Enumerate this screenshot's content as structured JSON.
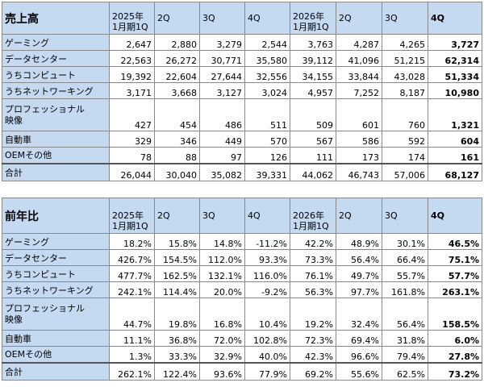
{
  "table1": {
    "title": "売上高",
    "headers": [
      {
        "line1": "2025年",
        "line2": "1月期1Q"
      },
      {
        "line1": "2Q",
        "line2": ""
      },
      {
        "line1": "3Q",
        "line2": ""
      },
      {
        "line1": "4Q",
        "line2": ""
      },
      {
        "line1": "2026年",
        "line2": "1月期1Q"
      },
      {
        "line1": "2Q",
        "line2": ""
      },
      {
        "line1": "3Q",
        "line2": ""
      },
      {
        "line1": "4Q",
        "line2": ""
      }
    ],
    "rows": [
      {
        "line1": "ゲーミング",
        "line2": "",
        "values": [
          "2,647",
          "2,880",
          "3,279",
          "2,544",
          "3,763",
          "4,287",
          "4,265",
          "3,727"
        ]
      },
      {
        "line1": "データセンター",
        "line2": "",
        "values": [
          "22,563",
          "26,272",
          "30,771",
          "35,580",
          "39,112",
          "41,096",
          "51,215",
          "62,314"
        ]
      },
      {
        "line1": "うちコンピュート",
        "line2": "",
        "values": [
          "19,392",
          "22,604",
          "27,644",
          "32,556",
          "34,155",
          "33,844",
          "43,028",
          "51,334"
        ]
      },
      {
        "line1": "うちネットワーキング",
        "line2": "",
        "values": [
          "3,171",
          "3,668",
          "3,127",
          "3,024",
          "4,957",
          "7,252",
          "8,187",
          "10,980"
        ]
      },
      {
        "line1": "プロフェッショナル",
        "line2": "映像",
        "values": [
          "427",
          "454",
          "486",
          "511",
          "509",
          "601",
          "760",
          "1,321"
        ]
      },
      {
        "line1": "自動車",
        "line2": "",
        "values": [
          "329",
          "346",
          "449",
          "570",
          "567",
          "586",
          "592",
          "604"
        ]
      },
      {
        "line1": "OEMその他",
        "line2": "",
        "values": [
          "78",
          "88",
          "97",
          "126",
          "111",
          "173",
          "174",
          "161"
        ]
      },
      {
        "line1": "合計",
        "line2": "",
        "values": [
          "26,044",
          "30,040",
          "35,082",
          "39,331",
          "44,062",
          "46,743",
          "57,006",
          "68,127"
        ]
      }
    ]
  },
  "table2": {
    "title": "前年比",
    "headers": [
      {
        "line1": "2025年",
        "line2": "1月期1Q"
      },
      {
        "line1": "2Q",
        "line2": ""
      },
      {
        "line1": "3Q",
        "line2": ""
      },
      {
        "line1": "4Q",
        "line2": ""
      },
      {
        "line1": "2026年",
        "line2": "1月期1Q"
      },
      {
        "line1": "2Q",
        "line2": ""
      },
      {
        "line1": "3Q",
        "line2": ""
      },
      {
        "line1": "4Q",
        "line2": ""
      }
    ],
    "rows": [
      {
        "line1": "ゲーミング",
        "line2": "",
        "values": [
          "18.2%",
          "15.8%",
          "14.8%",
          "-11.2%",
          "42.2%",
          "48.9%",
          "30.1%",
          "46.5%"
        ]
      },
      {
        "line1": "データセンター",
        "line2": "",
        "values": [
          "426.7%",
          "154.5%",
          "112.0%",
          "93.3%",
          "73.3%",
          "56.4%",
          "66.4%",
          "75.1%"
        ]
      },
      {
        "line1": "うちコンピュート",
        "line2": "",
        "values": [
          "477.7%",
          "162.5%",
          "132.1%",
          "116.0%",
          "76.1%",
          "49.7%",
          "55.7%",
          "57.7%"
        ]
      },
      {
        "line1": "うちネットワーキング",
        "line2": "",
        "values": [
          "242.1%",
          "114.4%",
          "20.0%",
          "-9.2%",
          "56.3%",
          "97.7%",
          "161.8%",
          "263.1%"
        ]
      },
      {
        "line1": "プロフェッショナル",
        "line2": "映像",
        "values": [
          "44.7%",
          "19.8%",
          "16.8%",
          "10.4%",
          "19.2%",
          "32.4%",
          "56.4%",
          "158.5%"
        ]
      },
      {
        "line1": "自動車",
        "line2": "",
        "values": [
          "11.1%",
          "36.8%",
          "72.0%",
          "102.8%",
          "72.3%",
          "69.4%",
          "31.8%",
          "6.0%"
        ]
      },
      {
        "line1": "OEMその他",
        "line2": "",
        "values": [
          "1.3%",
          "33.3%",
          "32.9%",
          "40.0%",
          "42.3%",
          "96.6%",
          "79.4%",
          "27.8%"
        ]
      },
      {
        "line1": "合計",
        "line2": "",
        "values": [
          "262.1%",
          "122.4%",
          "93.6%",
          "77.9%",
          "69.2%",
          "55.6%",
          "62.5%",
          "73.2%"
        ]
      }
    ]
  }
}
